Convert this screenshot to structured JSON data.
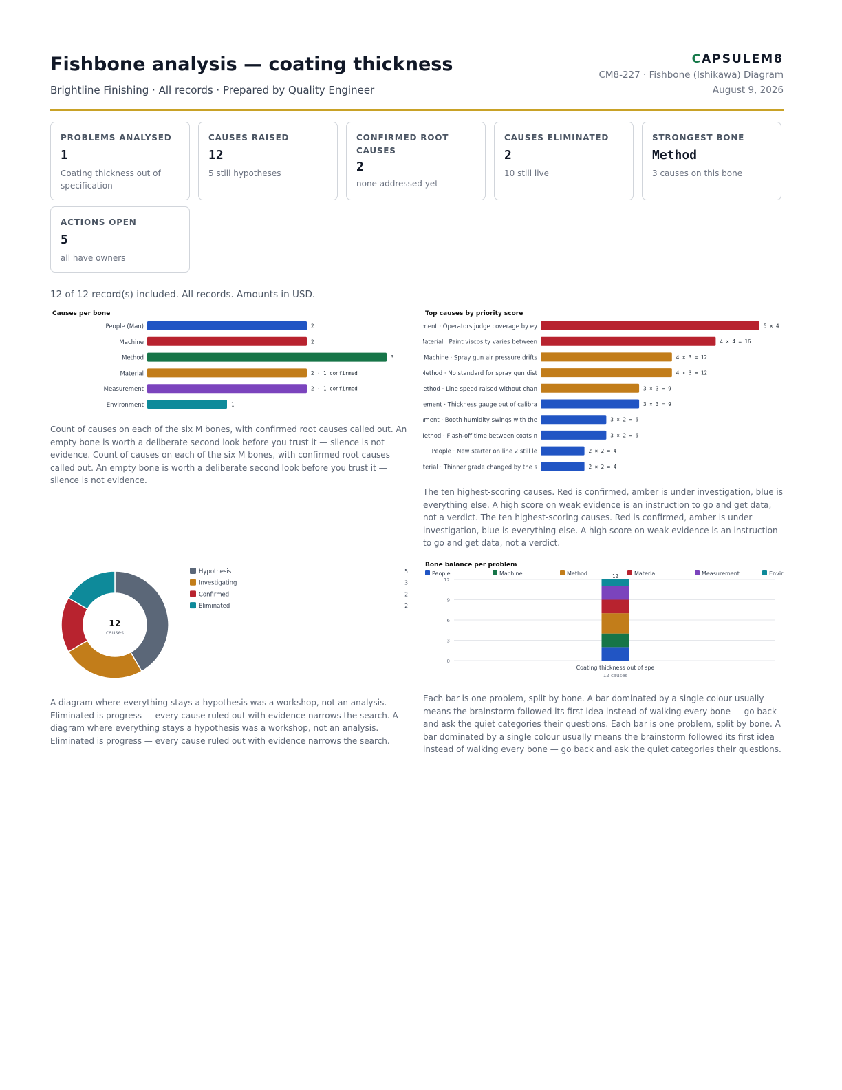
{
  "header": {
    "title": "Fishbone analysis — coating thickness",
    "subtitle": "Brightline Finishing · All records · Prepared by Quality Engineer",
    "brand_mark": "C",
    "brand_rest": "APSULEM8",
    "doc_ref": "CM8-227 · Fishbone (Ishikawa) Diagram",
    "date": "August 9, 2026"
  },
  "kpis": [
    {
      "label": "Problems analysed",
      "value": "1",
      "note": "Coating thickness out of specification"
    },
    {
      "label": "Causes raised",
      "value": "12",
      "note": "5 still hypotheses"
    },
    {
      "label": "Confirmed root causes",
      "value": "2",
      "note": "none addressed yet"
    },
    {
      "label": "Causes eliminated",
      "value": "2",
      "note": "10 still live"
    },
    {
      "label": "Strongest bone",
      "value": "Method",
      "note": "3 causes on this bone"
    },
    {
      "label": "Actions open",
      "value": "5",
      "note": "all have owners"
    }
  ],
  "summary": "12 of 12 record(s) included. All records. Amounts in USD.",
  "captions": {
    "bones": "Count of causes on each of the six M bones, with confirmed root causes called out. An empty bone is worth a deliberate second look before you trust it — silence is not evidence. Count of causes on each of the six M bones, with confirmed root causes called out. An empty bone is worth a deliberate second look before you trust it — silence is not evidence.",
    "top": "The ten highest-scoring causes. Red is confirmed, amber is under investigation, blue is everything else. A high score on weak evidence is an instruction to go and get data, not a verdict. The ten highest-scoring causes. Red is confirmed, amber is under investigation, blue is everything else. A high score on weak evidence is an instruction to go and get data, not a verdict.",
    "status": "A diagram where everything stays a hypothesis was a workshop, not an analysis. Eliminated is progress — every cause ruled out with evidence narrows the search. A diagram where everything stays a hypothesis was a workshop, not an analysis. Eliminated is progress — every cause ruled out with evidence narrows the search.",
    "balance": "Each bar is one problem, split by bone. A bar dominated by a single colour usually means the brainstorm followed its first idea instead of walking every bone — go back and ask the quiet categories their questions. Each bar is one problem, split by bone. A bar dominated by a single colour usually means the brainstorm followed its first idea instead of walking every bone — go back and ask the quiet categories their questions."
  },
  "colors": {
    "blue": "#2155c4",
    "red": "#b8232f",
    "green": "#167548",
    "amber": "#c27d1a",
    "purple": "#7b44bd",
    "teal": "#0e8a9a",
    "slate": "#5b6778"
  },
  "chart_data": [
    {
      "type": "bar",
      "orientation": "horizontal",
      "title": "Causes per bone",
      "categories": [
        "People (Man)",
        "Machine",
        "Method",
        "Material",
        "Measurement",
        "Environment"
      ],
      "values": [
        2,
        2,
        3,
        2,
        2,
        1
      ],
      "labels": [
        "2",
        "2",
        "3",
        "2 · 1 confirmed",
        "2 · 1 confirmed",
        "1"
      ],
      "colors": [
        "#2155c4",
        "#b8232f",
        "#167548",
        "#c27d1a",
        "#7b44bd",
        "#0e8a9a"
      ],
      "xlim": [
        0,
        3
      ]
    },
    {
      "type": "bar",
      "orientation": "horizontal",
      "title": "Top causes by priority score",
      "categories": [
        "rement · Operators judge coverage by ey",
        "Material · Paint viscosity varies between",
        "Machine · Spray gun air pressure drifts",
        "Method · No standard for spray gun dist",
        "Method · Line speed raised without chan",
        "surement · Thickness gauge out of calibra",
        "onment · Booth humidity swings with the",
        "Method · Flash-off time between coats n",
        "People · New starter on line 2 still le",
        "Material · Thinner grade changed by the s"
      ],
      "values": [
        20,
        16,
        12,
        12,
        9,
        9,
        6,
        6,
        4,
        4
      ],
      "labels": [
        "5 × 4",
        "4 × 4 = 16",
        "4 × 3 = 12",
        "4 × 3 = 12",
        "3 × 3 = 9",
        "3 × 3 = 9",
        "3 × 2 = 6",
        "3 × 2 = 6",
        "2 × 2 = 4",
        "2 × 2 = 4"
      ],
      "statuses": [
        "confirmed",
        "confirmed",
        "investigating",
        "investigating",
        "investigating",
        "other",
        "other",
        "other",
        "other",
        "other"
      ],
      "xlim": [
        0,
        20
      ]
    },
    {
      "type": "pie",
      "donut": true,
      "center_value": "12",
      "center_label": "causes",
      "categories": [
        "Hypothesis",
        "Investigating",
        "Confirmed",
        "Eliminated"
      ],
      "values": [
        5,
        3,
        2,
        2
      ],
      "colors": [
        "#5b6778",
        "#c27d1a",
        "#b8232f",
        "#0e8a9a"
      ],
      "legend": "right"
    },
    {
      "type": "bar",
      "stacked": true,
      "title": "Bone balance per problem",
      "categories": [
        "Coating thickness out of spe"
      ],
      "category_notes": [
        "12 causes"
      ],
      "totals": [
        12
      ],
      "series": [
        {
          "name": "People",
          "values": [
            2
          ],
          "color": "#2155c4"
        },
        {
          "name": "Machine",
          "values": [
            2
          ],
          "color": "#167548"
        },
        {
          "name": "Method",
          "values": [
            3
          ],
          "color": "#c27d1a"
        },
        {
          "name": "Material",
          "values": [
            2
          ],
          "color": "#b8232f"
        },
        {
          "name": "Measurement",
          "values": [
            2
          ],
          "color": "#7b44bd"
        },
        {
          "name": "Envir",
          "values": [
            1
          ],
          "color": "#0e8a9a"
        }
      ],
      "y_ticks": [
        "0",
        "3",
        "6",
        "9",
        "12"
      ],
      "ylim": [
        0,
        12
      ],
      "grid": true,
      "legend": "top"
    }
  ]
}
